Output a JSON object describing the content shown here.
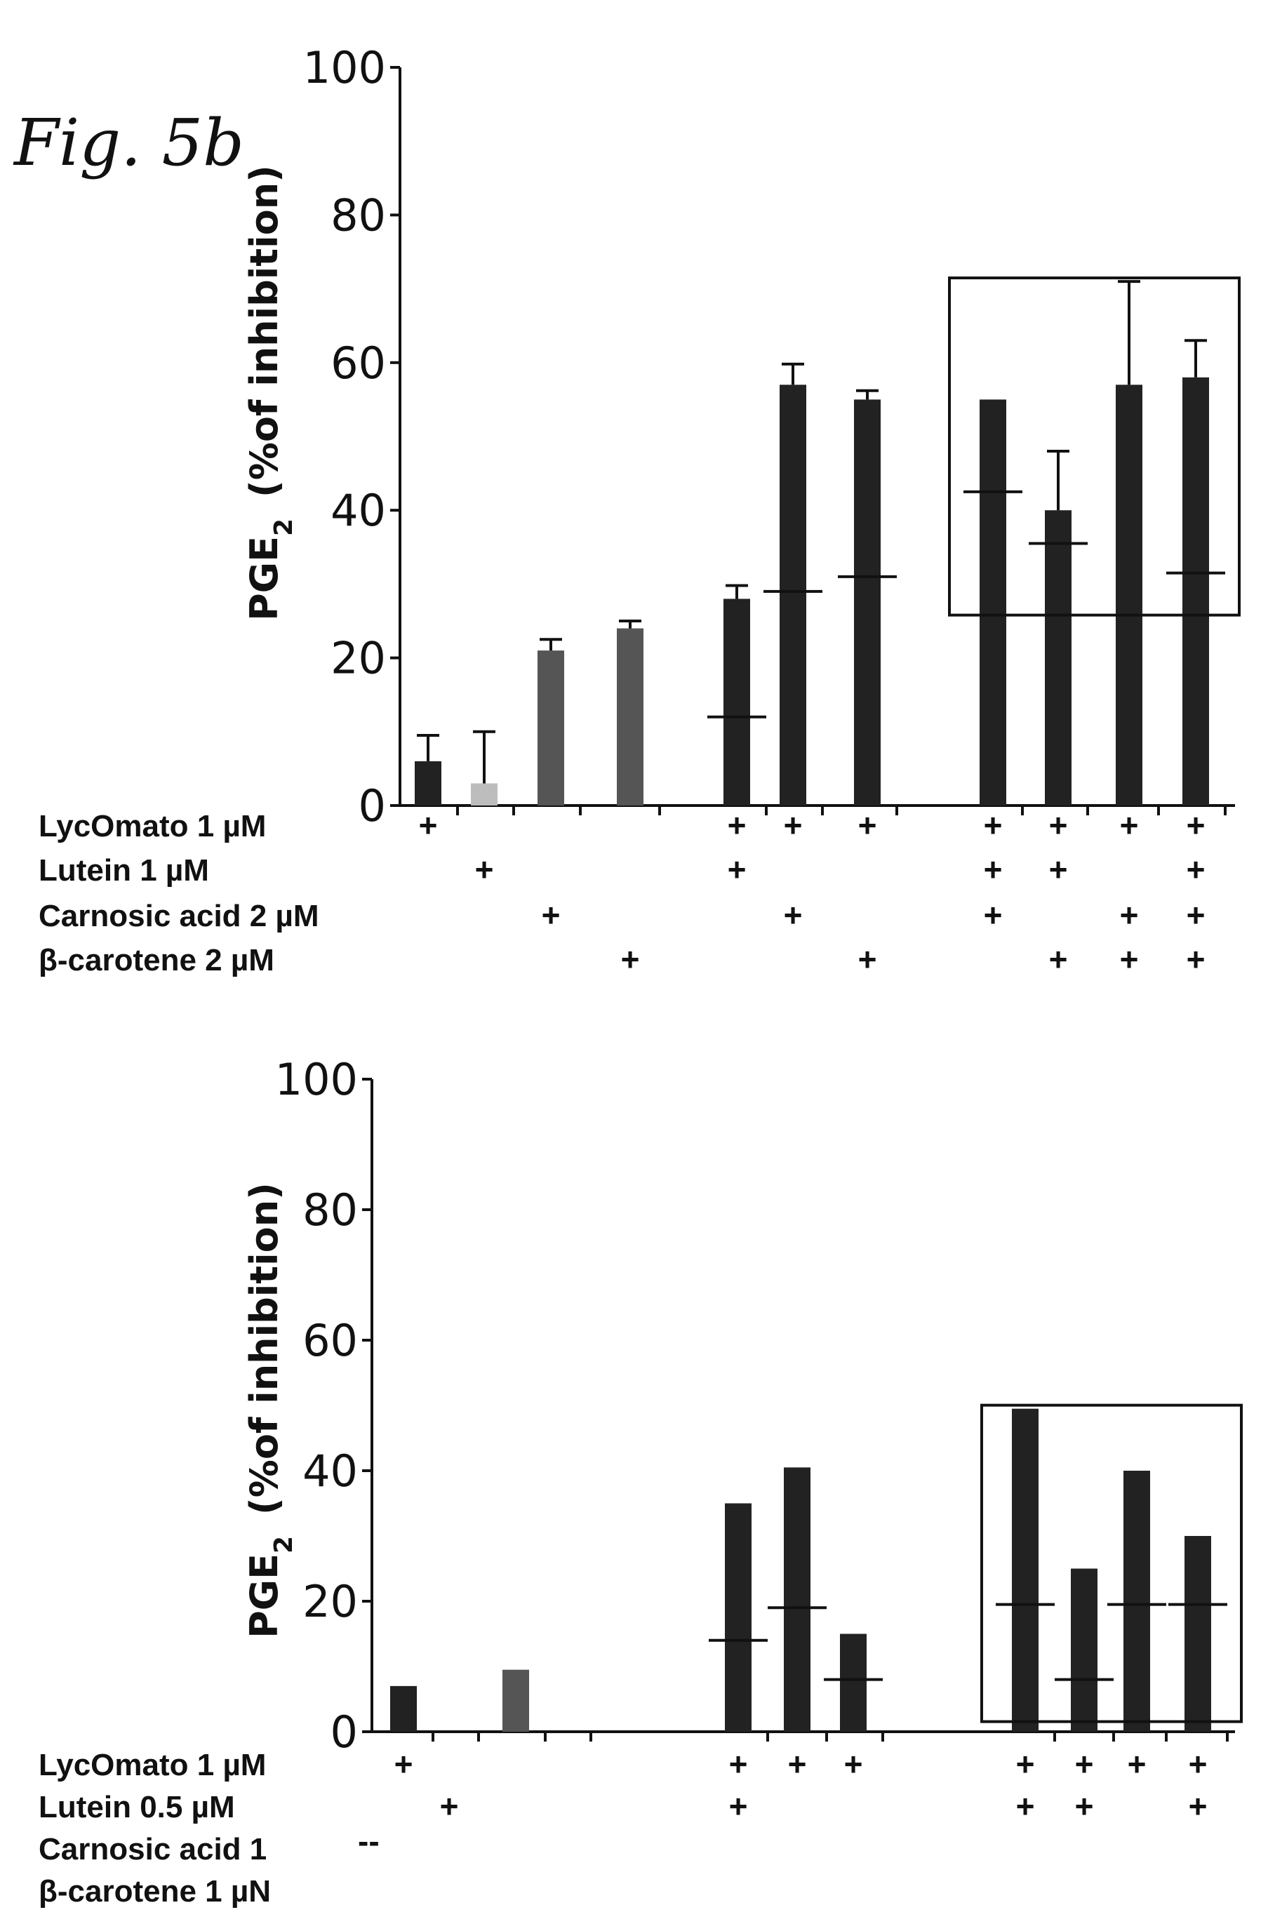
{
  "figure_label": "Fig. 5b",
  "chart_data": [
    {
      "type": "bar",
      "yaxis_label_main": "PGE",
      "yaxis_label_sub": "2",
      "yaxis_label_rest": "(%of inhibition)",
      "ylim": [
        0,
        100
      ],
      "yticks": [
        0,
        20,
        40,
        60,
        80,
        100
      ],
      "ytick_labels": [
        "0",
        "20",
        "40",
        "60",
        "80",
        "100"
      ],
      "rows": [
        {
          "label": "LycOmato 1 µM"
        },
        {
          "label": "Lutein 1 µM"
        },
        {
          "label": "Carnosic acid 2 µM"
        },
        {
          "label": "β-carotene 2 µM"
        }
      ],
      "bars": [
        {
          "value": 6,
          "error": 3.5,
          "shade": "dark",
          "mean_line": null,
          "combo": [
            1,
            0,
            0,
            0
          ]
        },
        {
          "value": 3,
          "error": 7,
          "shade": "light",
          "mean_line": null,
          "combo": [
            0,
            1,
            0,
            0
          ]
        },
        {
          "value": 21,
          "error": 1.5,
          "shade": "mid",
          "mean_line": null,
          "combo": [
            0,
            0,
            1,
            0
          ]
        },
        {
          "value": 24,
          "error": 1,
          "shade": "mid",
          "mean_line": null,
          "combo": [
            0,
            0,
            0,
            1
          ]
        },
        {
          "value": 28,
          "error": 1.8,
          "shade": "dark",
          "mean_line": 12,
          "combo": [
            1,
            1,
            0,
            0
          ]
        },
        {
          "value": 57,
          "error": 2.8,
          "shade": "dark",
          "mean_line": 29,
          "combo": [
            1,
            0,
            1,
            0
          ]
        },
        {
          "value": 55,
          "error": 1.2,
          "shade": "dark",
          "mean_line": 31,
          "combo": [
            1,
            0,
            0,
            1
          ]
        },
        {
          "value": 55,
          "error": 0,
          "shade": "dark",
          "mean_line": 42.5,
          "combo": [
            1,
            1,
            1,
            0
          ]
        },
        {
          "value": 40,
          "error": 8,
          "shade": "dark",
          "mean_line": 35.5,
          "combo": [
            1,
            1,
            0,
            1
          ]
        },
        {
          "value": 57,
          "error": 14,
          "shade": "dark",
          "mean_line": null,
          "combo": [
            1,
            0,
            1,
            1
          ]
        },
        {
          "value": 58,
          "error": 5,
          "shade": "dark",
          "mean_line": 31.5,
          "combo": [
            1,
            1,
            1,
            1
          ]
        }
      ],
      "boxed_bars": [
        7,
        10
      ],
      "plus_symbol": "+"
    },
    {
      "type": "bar",
      "yaxis_label_main": "PGE",
      "yaxis_label_sub": "2",
      "yaxis_label_rest": "(%of inhibition)",
      "ylim": [
        0,
        100
      ],
      "yticks": [
        0,
        20,
        40,
        60,
        80,
        100
      ],
      "ytick_labels": [
        "0",
        "20",
        "40",
        "60",
        "80",
        "100"
      ],
      "rows": [
        {
          "label": "LycOmato 1 µM"
        },
        {
          "label": "Lutein 0.5 µM"
        },
        {
          "label": "Carnosic acid 1"
        },
        {
          "label": "β-carotene 1 µN"
        }
      ],
      "bars": [
        {
          "value": 7,
          "shade": "dark",
          "mean_line": null,
          "combo": [
            1,
            0,
            0,
            0
          ]
        },
        {
          "value": 0,
          "shade": "light",
          "mean_line": null,
          "combo": [
            0,
            1,
            0,
            0
          ]
        },
        {
          "value": 9.5,
          "shade": "mid",
          "mean_line": null,
          "combo": [
            0,
            0,
            0,
            0
          ]
        },
        {
          "value": 0,
          "shade": "mid",
          "mean_line": null,
          "combo": [
            0,
            0,
            0,
            0
          ]
        },
        {
          "value": 35,
          "shade": "dark",
          "mean_line": 14,
          "combo": [
            1,
            1,
            0,
            0
          ]
        },
        {
          "value": 40.5,
          "shade": "dark",
          "mean_line": 19,
          "combo": [
            1,
            0,
            0,
            0
          ]
        },
        {
          "value": 15,
          "shade": "dark",
          "mean_line": 8,
          "combo": [
            1,
            0,
            0,
            0
          ]
        },
        {
          "value": 49.5,
          "shade": "dark",
          "mean_line": 19.5,
          "combo": [
            1,
            1,
            0,
            0
          ]
        },
        {
          "value": 25,
          "shade": "dark",
          "mean_line": 8,
          "combo": [
            1,
            1,
            0,
            0
          ]
        },
        {
          "value": 40,
          "shade": "dark",
          "mean_line": 19.5,
          "combo": [
            1,
            0,
            0,
            0
          ]
        },
        {
          "value": 30,
          "shade": "dark",
          "mean_line": 19.5,
          "combo": [
            1,
            1,
            0,
            0
          ]
        }
      ],
      "boxed_bars": [
        7,
        10
      ],
      "carnosic_marker": "--",
      "plus_symbol": "+"
    }
  ]
}
